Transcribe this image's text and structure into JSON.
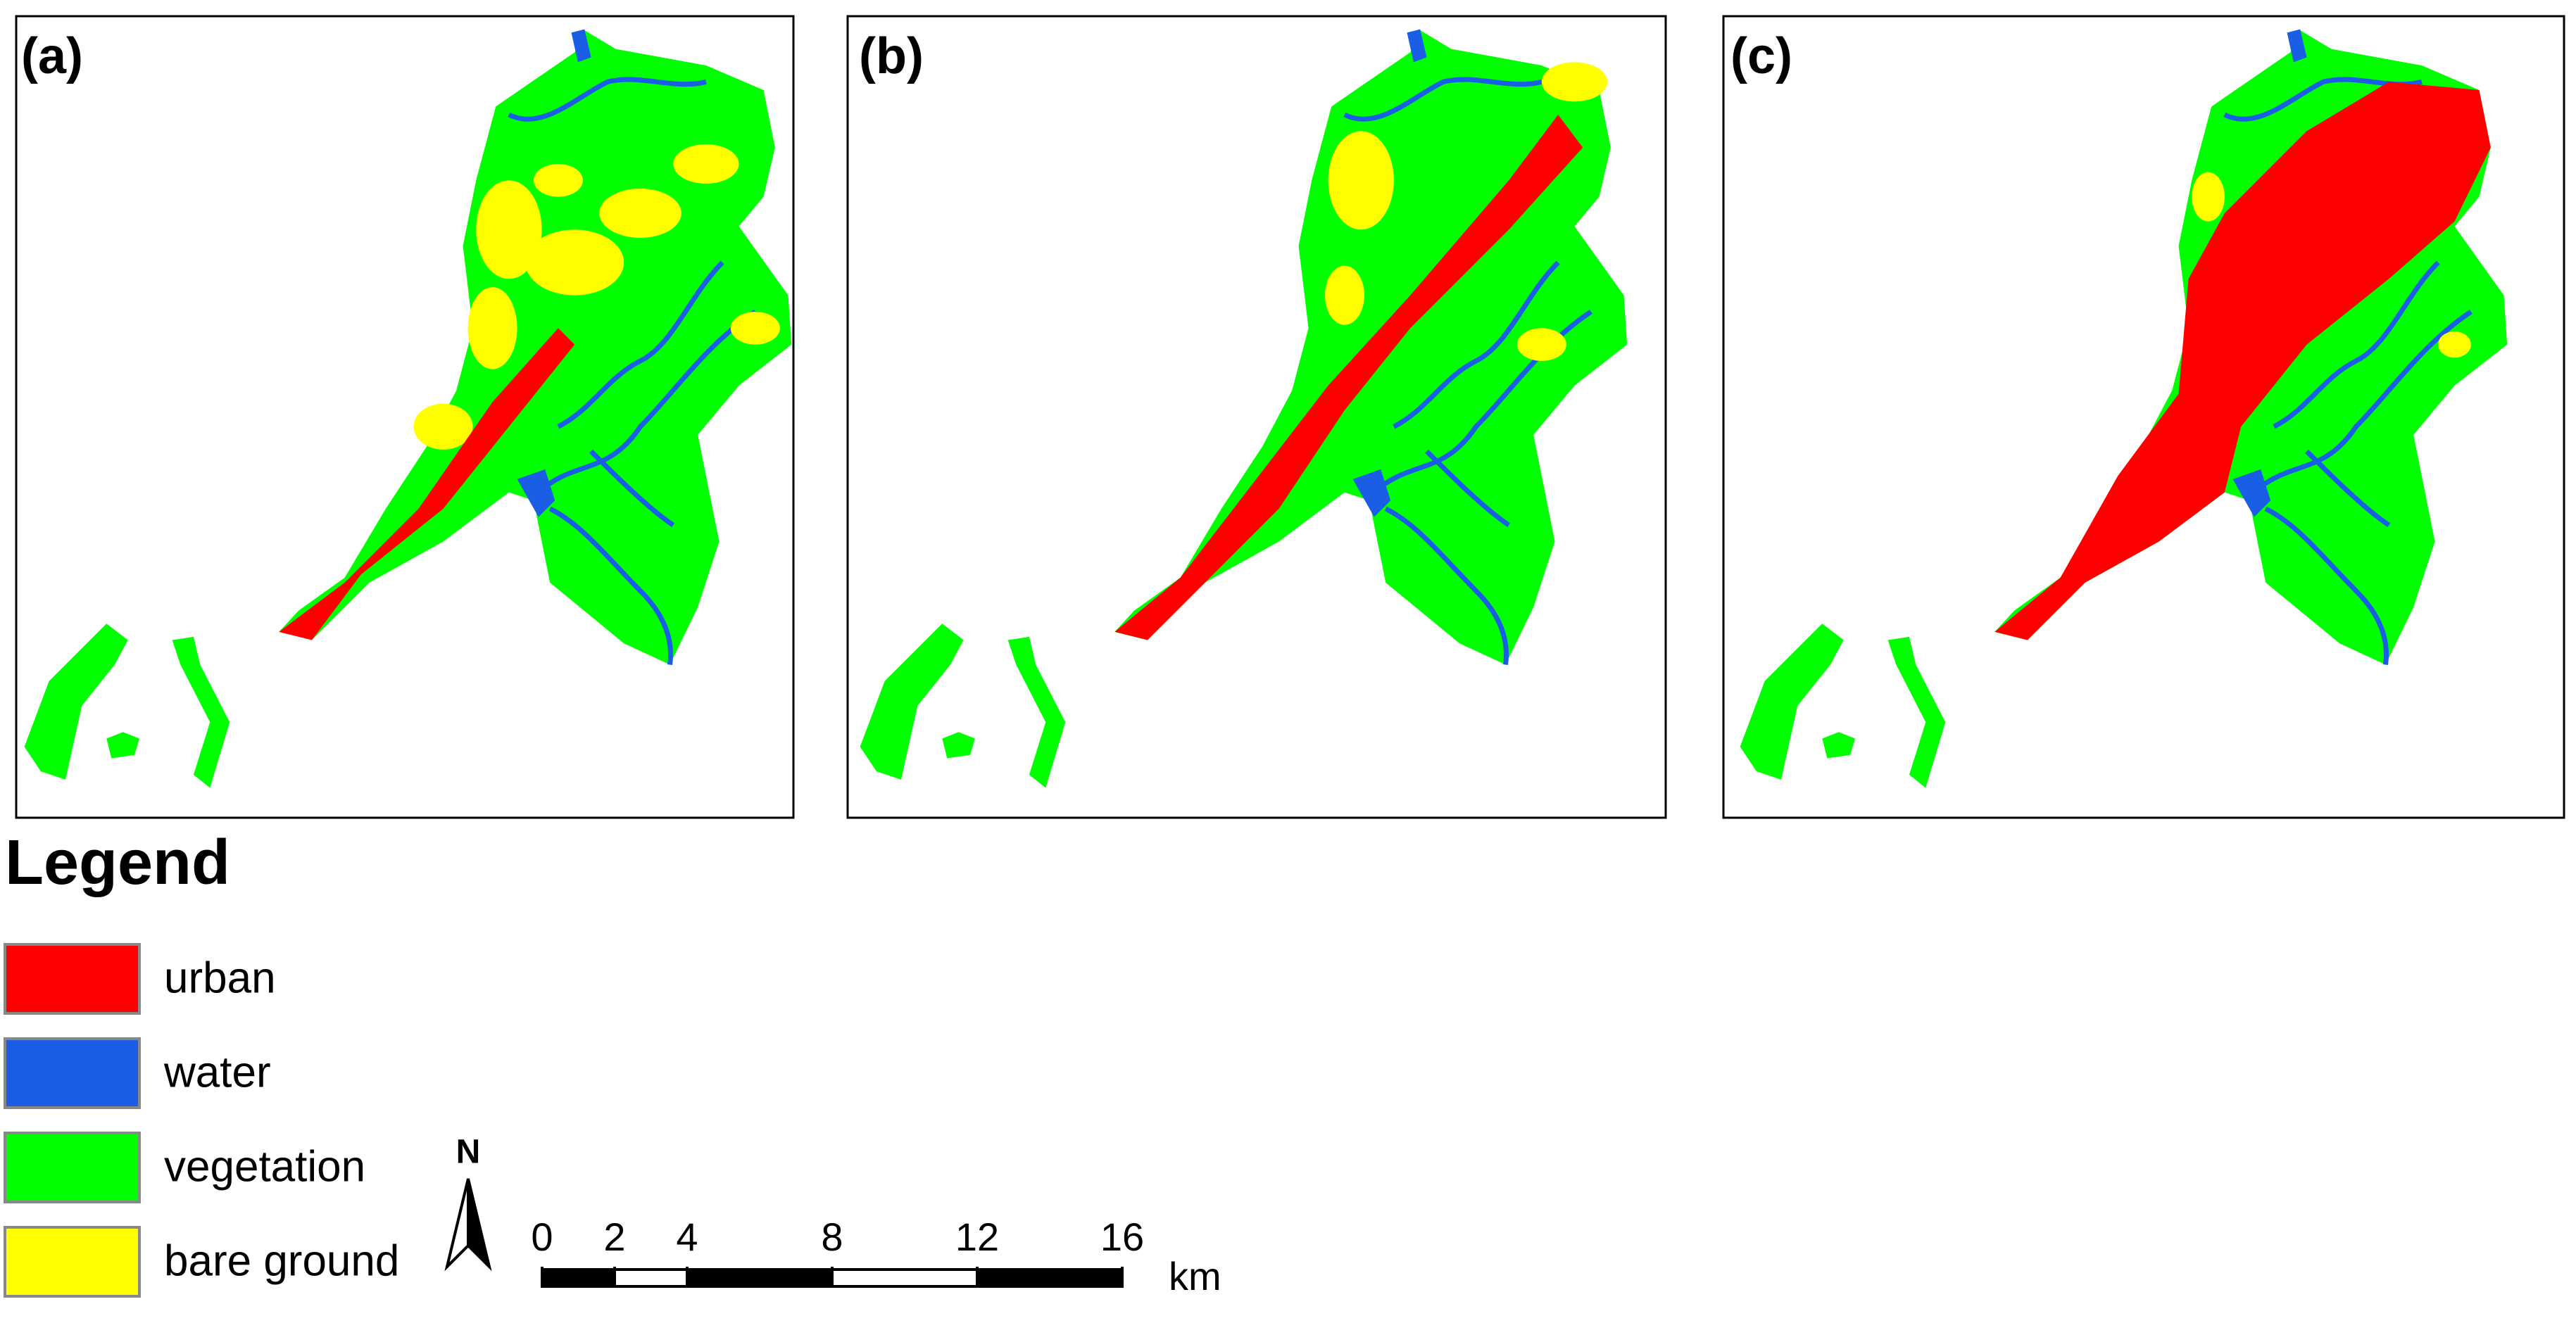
{
  "panels": [
    {
      "label": "(a)"
    },
    {
      "label": "(b)"
    },
    {
      "label": "(c)"
    }
  ],
  "legend": {
    "title": "Legend",
    "items": [
      {
        "label": "urban",
        "color": "#ff0000"
      },
      {
        "label": "water",
        "color": "#1a5ee6"
      },
      {
        "label": "vegetation",
        "color": "#00ff00"
      },
      {
        "label": "bare ground",
        "color": "#ffff00"
      }
    ]
  },
  "north_arrow": {
    "label": "N"
  },
  "scale_bar": {
    "ticks": [
      0,
      2,
      4,
      8,
      12,
      16
    ],
    "unit": "km"
  }
}
